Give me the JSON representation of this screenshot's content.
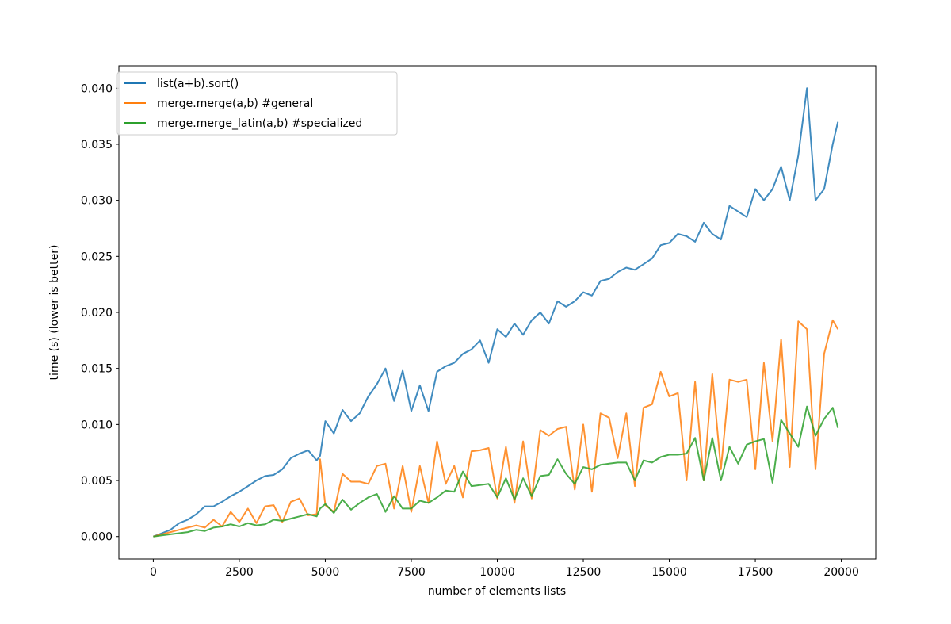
{
  "chart_data": {
    "type": "line",
    "title": "",
    "xlabel": "number of elements lists",
    "ylabel": "time (s) (lower is better)",
    "xlim": [
      -1000,
      21000
    ],
    "ylim": [
      -0.002,
      0.042
    ],
    "xticks": [
      0,
      2500,
      5000,
      7500,
      10000,
      12500,
      15000,
      17500,
      20000
    ],
    "xtick_labels": [
      "0",
      "2500",
      "5000",
      "7500",
      "10000",
      "12500",
      "15000",
      "17500",
      "20000"
    ],
    "yticks": [
      0,
      0.005,
      0.01,
      0.015,
      0.02,
      0.025,
      0.03,
      0.035,
      0.04
    ],
    "ytick_labels": [
      "0.000",
      "0.005",
      "0.010",
      "0.015",
      "0.020",
      "0.025",
      "0.030",
      "0.035",
      "0.040"
    ],
    "grid": false,
    "legend_position": "top-left",
    "x": [
      0,
      250,
      500,
      750,
      1000,
      1250,
      1500,
      1750,
      2000,
      2250,
      2500,
      2750,
      3000,
      3250,
      3500,
      3750,
      4000,
      4250,
      4500,
      4750,
      4850,
      5000,
      5250,
      5500,
      5750,
      6000,
      6250,
      6500,
      6750,
      7000,
      7250,
      7500,
      7750,
      8000,
      8250,
      8500,
      8750,
      9000,
      9250,
      9500,
      9750,
      10000,
      10250,
      10500,
      10750,
      11000,
      11250,
      11500,
      11750,
      12000,
      12250,
      12500,
      12750,
      13000,
      13250,
      13500,
      13750,
      14000,
      14250,
      14500,
      14750,
      15000,
      15250,
      15500,
      15750,
      16000,
      16250,
      16500,
      16750,
      17000,
      17250,
      17500,
      17750,
      18000,
      18250,
      18500,
      18750,
      19000,
      19250,
      19500,
      19750,
      19900
    ],
    "series": [
      {
        "name": "list(a+b).sort()",
        "color": "#1f77b4",
        "values": [
          0,
          0.0003,
          0.0006,
          0.0012,
          0.0015,
          0.002,
          0.0027,
          0.0027,
          0.0031,
          0.0036,
          0.004,
          0.0045,
          0.005,
          0.0054,
          0.0055,
          0.006,
          0.007,
          0.0074,
          0.0077,
          0.0068,
          0.0072,
          0.0103,
          0.0092,
          0.0113,
          0.0103,
          0.011,
          0.0125,
          0.0136,
          0.015,
          0.0121,
          0.0148,
          0.0112,
          0.0135,
          0.0112,
          0.0147,
          0.0152,
          0.0155,
          0.0163,
          0.0167,
          0.0175,
          0.0155,
          0.0185,
          0.0178,
          0.019,
          0.018,
          0.0193,
          0.02,
          0.019,
          0.021,
          0.0205,
          0.021,
          0.0218,
          0.0215,
          0.0228,
          0.023,
          0.0236,
          0.024,
          0.0238,
          0.0243,
          0.0248,
          0.026,
          0.0262,
          0.027,
          0.0268,
          0.0263,
          0.028,
          0.027,
          0.0265,
          0.0295,
          0.029,
          0.0285,
          0.031,
          0.03,
          0.031,
          0.033,
          0.03,
          0.034,
          0.04,
          0.03,
          0.031,
          0.035,
          0.037
        ]
      },
      {
        "name": "merge.merge(a,b) #general",
        "color": "#ff7f0e",
        "values": [
          0,
          0.0002,
          0.0004,
          0.0006,
          0.0008,
          0.001,
          0.0008,
          0.0015,
          0.0009,
          0.0022,
          0.0013,
          0.0025,
          0.0012,
          0.0027,
          0.0028,
          0.0013,
          0.0031,
          0.0034,
          0.0019,
          0.002,
          0.0069,
          0.0028,
          0.0022,
          0.0056,
          0.0049,
          0.0049,
          0.0047,
          0.0063,
          0.0065,
          0.0025,
          0.0063,
          0.0022,
          0.0063,
          0.003,
          0.0085,
          0.0047,
          0.0063,
          0.0035,
          0.0076,
          0.0077,
          0.0079,
          0.0034,
          0.008,
          0.003,
          0.0085,
          0.0034,
          0.0095,
          0.009,
          0.0096,
          0.0098,
          0.0042,
          0.01,
          0.004,
          0.011,
          0.0106,
          0.007,
          0.011,
          0.0045,
          0.0115,
          0.0118,
          0.0147,
          0.0125,
          0.0128,
          0.005,
          0.0138,
          0.005,
          0.0145,
          0.006,
          0.014,
          0.0138,
          0.014,
          0.006,
          0.0155,
          0.0085,
          0.0176,
          0.0062,
          0.0192,
          0.0185,
          0.006,
          0.0163,
          0.0193,
          0.0185
        ]
      },
      {
        "name": "merge.merge_latin(a,b) #specialized",
        "color": "#2ca02c",
        "values": [
          0,
          0.0001,
          0.0002,
          0.0003,
          0.0004,
          0.0006,
          0.0005,
          0.0008,
          0.0009,
          0.0011,
          0.0009,
          0.0012,
          0.001,
          0.0011,
          0.0015,
          0.0014,
          0.0016,
          0.0018,
          0.002,
          0.0018,
          0.0025,
          0.0029,
          0.0021,
          0.0033,
          0.0024,
          0.003,
          0.0035,
          0.0038,
          0.0022,
          0.0036,
          0.0025,
          0.0025,
          0.0032,
          0.003,
          0.0035,
          0.0041,
          0.004,
          0.0058,
          0.0045,
          0.0046,
          0.0047,
          0.0035,
          0.0052,
          0.0033,
          0.0052,
          0.0036,
          0.0054,
          0.0055,
          0.0069,
          0.0056,
          0.0047,
          0.0062,
          0.006,
          0.0064,
          0.0065,
          0.0066,
          0.0066,
          0.005,
          0.0068,
          0.0066,
          0.0071,
          0.0073,
          0.0073,
          0.0074,
          0.0088,
          0.005,
          0.0088,
          0.005,
          0.008,
          0.0065,
          0.0082,
          0.0085,
          0.0087,
          0.0048,
          0.0104,
          0.0092,
          0.008,
          0.0116,
          0.009,
          0.0105,
          0.0115,
          0.0097
        ]
      }
    ]
  }
}
